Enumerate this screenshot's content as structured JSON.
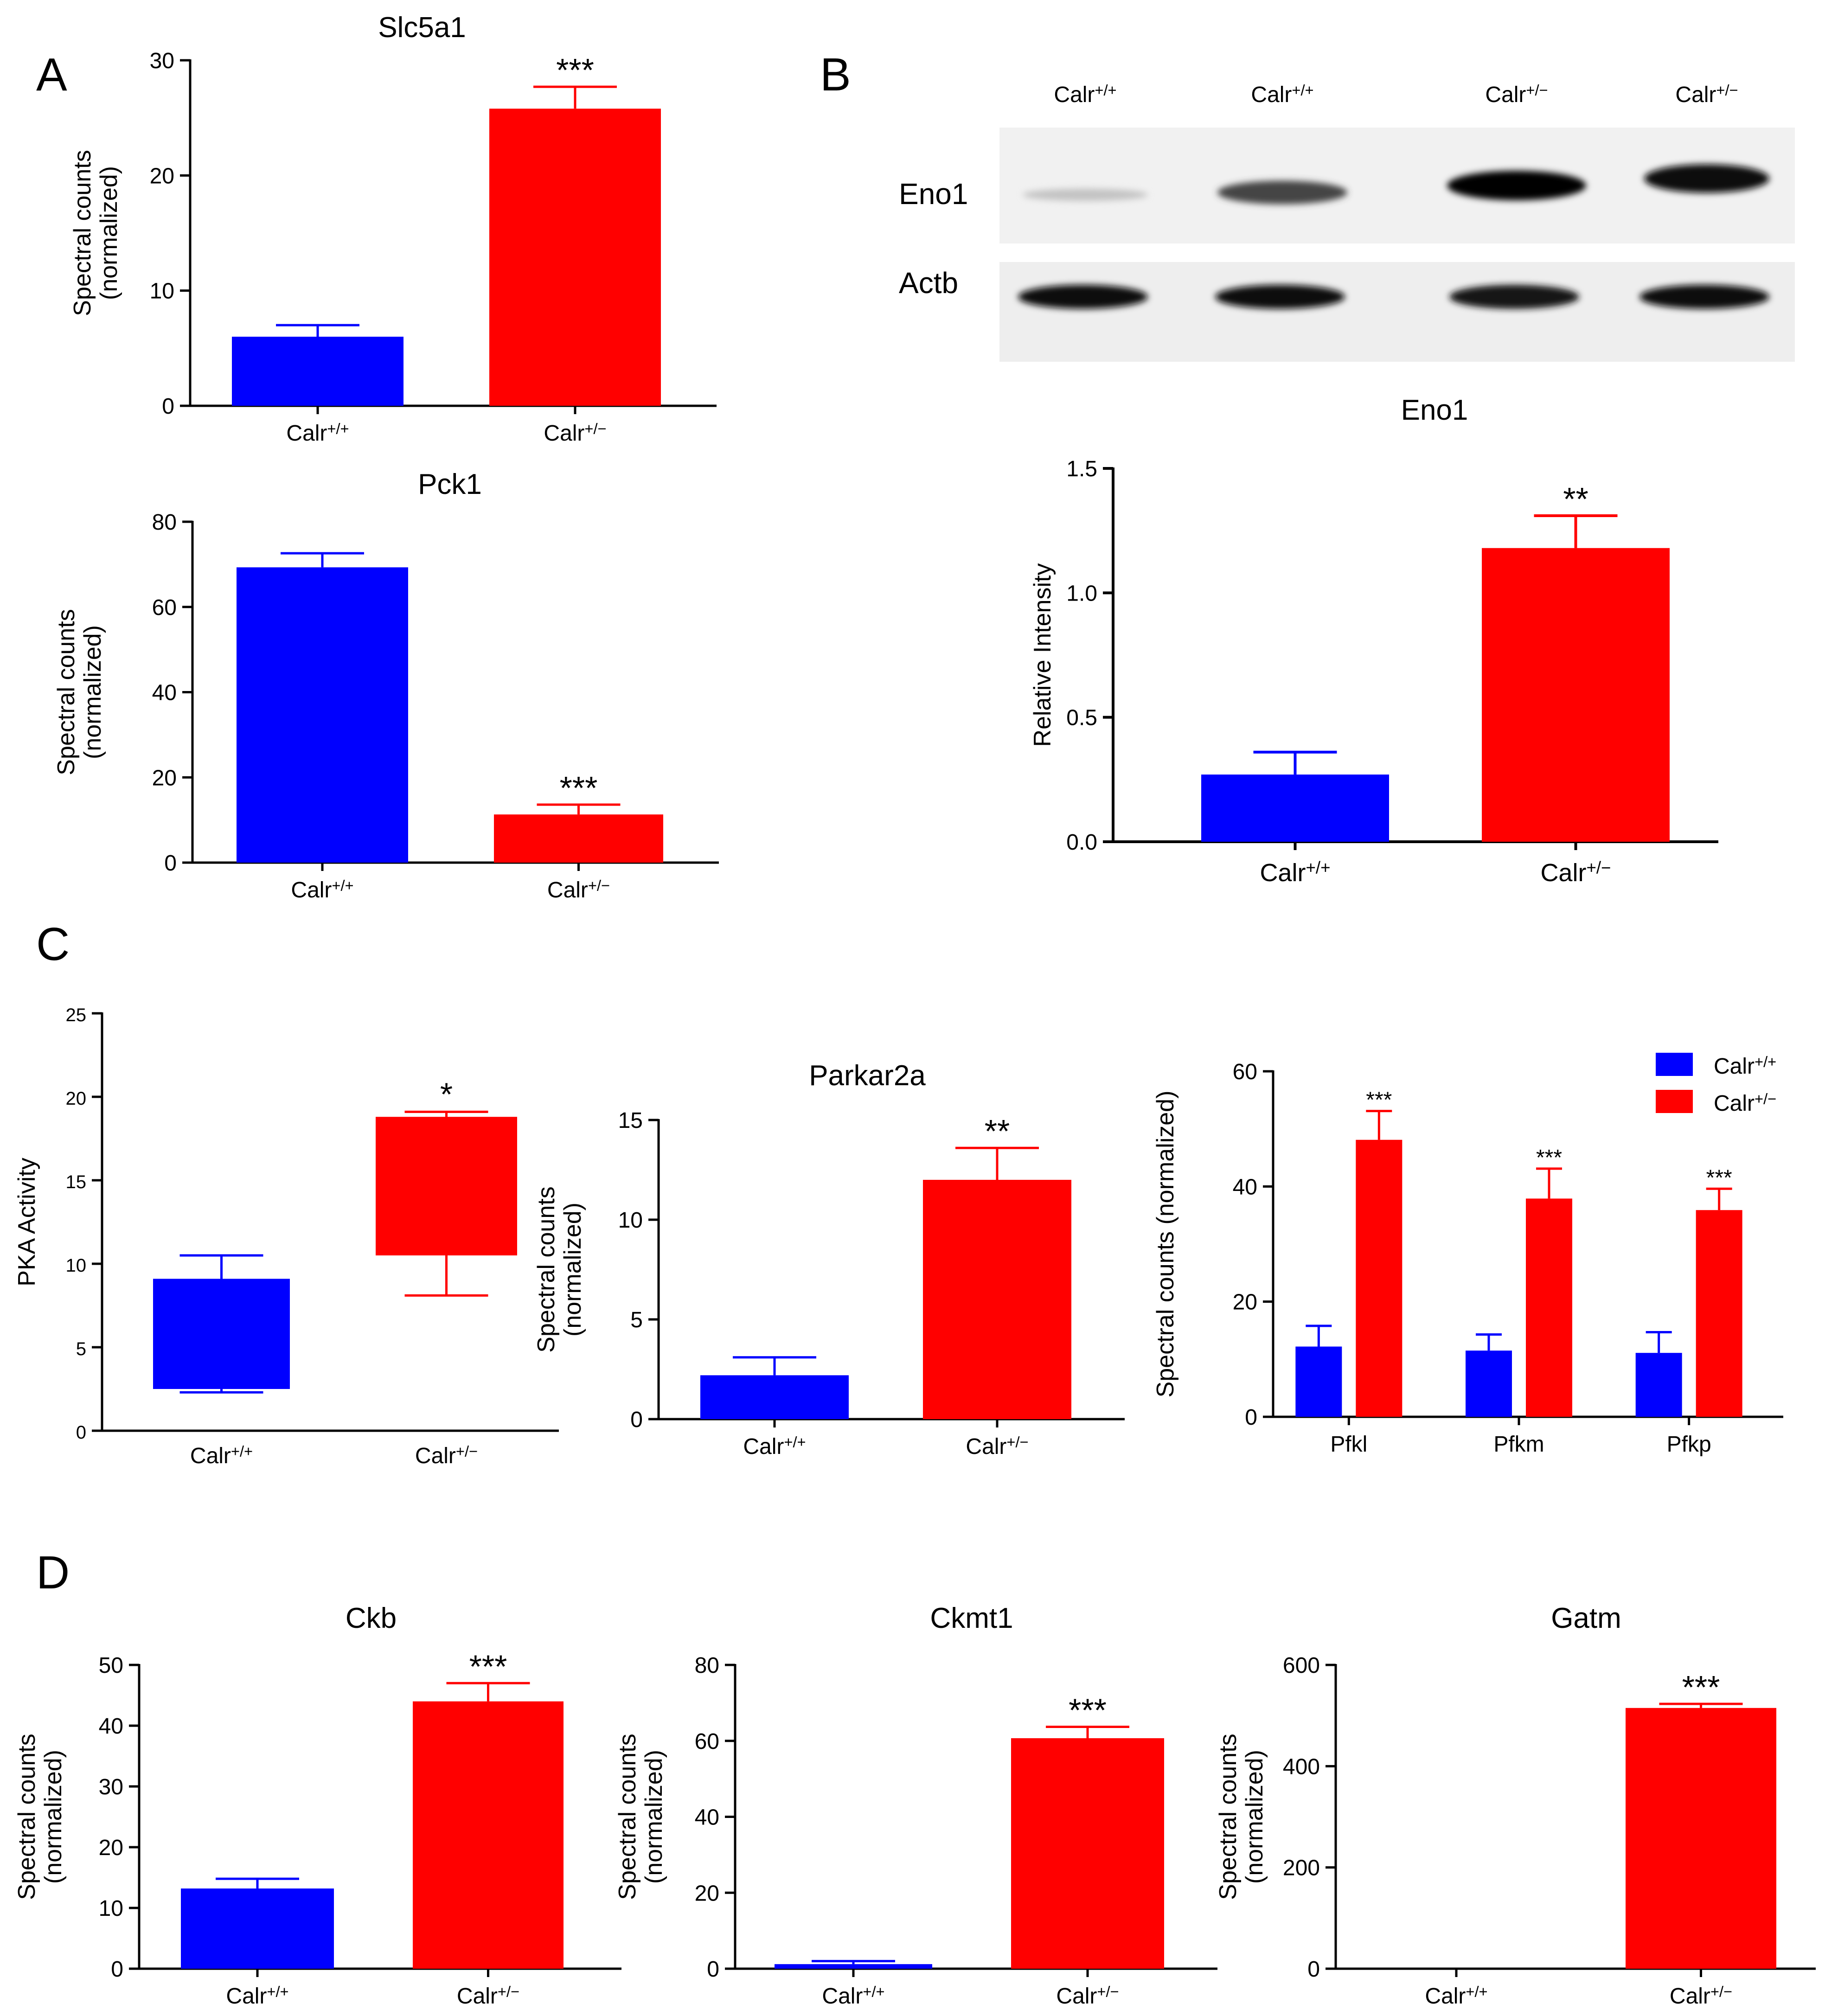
{
  "figure": {
    "panel_letters": [
      "A",
      "B",
      "C",
      "D"
    ]
  },
  "colors": {
    "wt": "#0000ff",
    "het": "#ff0000",
    "axis": "#000000"
  },
  "groups": {
    "wt": "Calr",
    "wt_sup": "+/+",
    "het": "Calr",
    "het_sup": "+/−"
  },
  "blot": {
    "lanes": [
      {
        "text": "Calr",
        "sup": "+/+"
      },
      {
        "text": "Calr",
        "sup": "+/+"
      },
      {
        "text": "Calr",
        "sup": "+/−"
      },
      {
        "text": "Calr",
        "sup": "+/−"
      }
    ],
    "rows": [
      "Eno1",
      "Actb"
    ],
    "eno1_band_intensity": [
      0.15,
      0.7,
      1.0,
      0.95
    ],
    "actb_band_intensity": [
      0.95,
      0.95,
      0.9,
      0.95
    ]
  },
  "chart_data": [
    {
      "id": "slc5a1",
      "type": "bar",
      "title": "Slc5a1",
      "ylabel": [
        "Spectral counts",
        "(normalized)"
      ],
      "categories": [
        "Calr+/+",
        "Calr+/−"
      ],
      "values": [
        6,
        25.8
      ],
      "errors": [
        1,
        1.9
      ],
      "significance": [
        "",
        "***"
      ],
      "ylim": [
        0,
        30
      ],
      "yticks": [
        0,
        10,
        20,
        30
      ]
    },
    {
      "id": "pck1",
      "type": "bar",
      "title": "Pck1",
      "ylabel": [
        "Spectral counts",
        "(normalized)"
      ],
      "categories": [
        "Calr+/+",
        "Calr+/−"
      ],
      "values": [
        69.3,
        11.3
      ],
      "errors": [
        3.3,
        2.3
      ],
      "significance": [
        "",
        "***"
      ],
      "ylim": [
        0,
        80
      ],
      "yticks": [
        0,
        20,
        40,
        60,
        80
      ]
    },
    {
      "id": "eno1",
      "type": "bar",
      "title": "Eno1",
      "ylabel": [
        "Relative Intensity"
      ],
      "categories": [
        "Calr+/+",
        "Calr+/−"
      ],
      "values": [
        0.27,
        1.18
      ],
      "errors": [
        0.09,
        0.13
      ],
      "significance": [
        "",
        "**"
      ],
      "ylim": [
        0,
        1.5
      ],
      "yticks": [
        "0.0",
        "0.5",
        "1.0",
        "1.5"
      ]
    },
    {
      "id": "pka",
      "type": "box",
      "title": "",
      "ylabel": [
        "PKA Activity"
      ],
      "categories": [
        "Calr+/+",
        "Calr+/−"
      ],
      "boxes": [
        {
          "min": 2.3,
          "q1": 2.5,
          "q3": 9.1,
          "max": 10.5
        },
        {
          "min": 8.1,
          "q1": 10.5,
          "q3": 18.8,
          "max": 19.1
        }
      ],
      "significance": [
        "",
        "*"
      ],
      "ylim": [
        0,
        25
      ],
      "yticks": [
        0,
        5,
        10,
        15,
        20,
        25
      ]
    },
    {
      "id": "parkar2a",
      "type": "bar",
      "title": "Parkar2a",
      "ylabel": [
        "Spectral counts",
        "(normalized)"
      ],
      "categories": [
        "Calr+/+",
        "Calr+/−"
      ],
      "values": [
        2.2,
        12
      ],
      "errors": [
        0.9,
        1.6
      ],
      "significance": [
        "",
        "**"
      ],
      "ylim": [
        0,
        15
      ],
      "yticks": [
        0,
        5,
        10,
        15
      ]
    },
    {
      "id": "pfk",
      "type": "bar",
      "title": "",
      "ylabel": [
        "Spectral counts (normalized)"
      ],
      "categories": [
        "Pfkl",
        "Pfkm",
        "Pfkp"
      ],
      "series": [
        {
          "name": "Calr+/+",
          "values": [
            12.2,
            11.5,
            11.1
          ],
          "errors": [
            3.6,
            2.8,
            3.6
          ]
        },
        {
          "name": "Calr+/−",
          "values": [
            48.1,
            37.9,
            35.9
          ],
          "errors": [
            5,
            5.2,
            3.7
          ]
        }
      ],
      "significance": [
        "***",
        "***",
        "***"
      ],
      "legend": [
        {
          "text": "Calr",
          "sup": "+/+"
        },
        {
          "text": "Calr",
          "sup": "+/−"
        }
      ],
      "legend_position": "top-right",
      "ylim": [
        0,
        60
      ],
      "yticks": [
        0,
        20,
        40,
        60
      ]
    },
    {
      "id": "ckb",
      "type": "bar",
      "title": "Ckb",
      "ylabel": [
        "Spectral counts",
        "(normalized)"
      ],
      "categories": [
        "Calr+/+",
        "Calr+/−"
      ],
      "values": [
        13.2,
        44
      ],
      "errors": [
        1.6,
        3
      ],
      "significance": [
        "",
        "***"
      ],
      "ylim": [
        0,
        50
      ],
      "yticks": [
        0,
        10,
        20,
        30,
        40,
        50
      ]
    },
    {
      "id": "ckmt1",
      "type": "bar",
      "title": "Ckmt1",
      "ylabel": [
        "Spectral counts",
        "(normalized)"
      ],
      "categories": [
        "Calr+/+",
        "Calr+/−"
      ],
      "values": [
        1.2,
        60.7
      ],
      "errors": [
        0.8,
        3
      ],
      "significance": [
        "",
        "***"
      ],
      "ylim": [
        0,
        80
      ],
      "yticks": [
        0,
        20,
        40,
        60,
        80
      ]
    },
    {
      "id": "gatm",
      "type": "bar",
      "title": "Gatm",
      "ylabel": [
        "Spectral counts",
        "(normalized)"
      ],
      "categories": [
        "Calr+/+",
        "Calr+/−"
      ],
      "values": [
        0,
        515
      ],
      "errors": [
        0,
        8
      ],
      "significance": [
        "",
        "***"
      ],
      "ylim": [
        0,
        600
      ],
      "yticks": [
        0,
        200,
        400,
        600
      ]
    }
  ]
}
